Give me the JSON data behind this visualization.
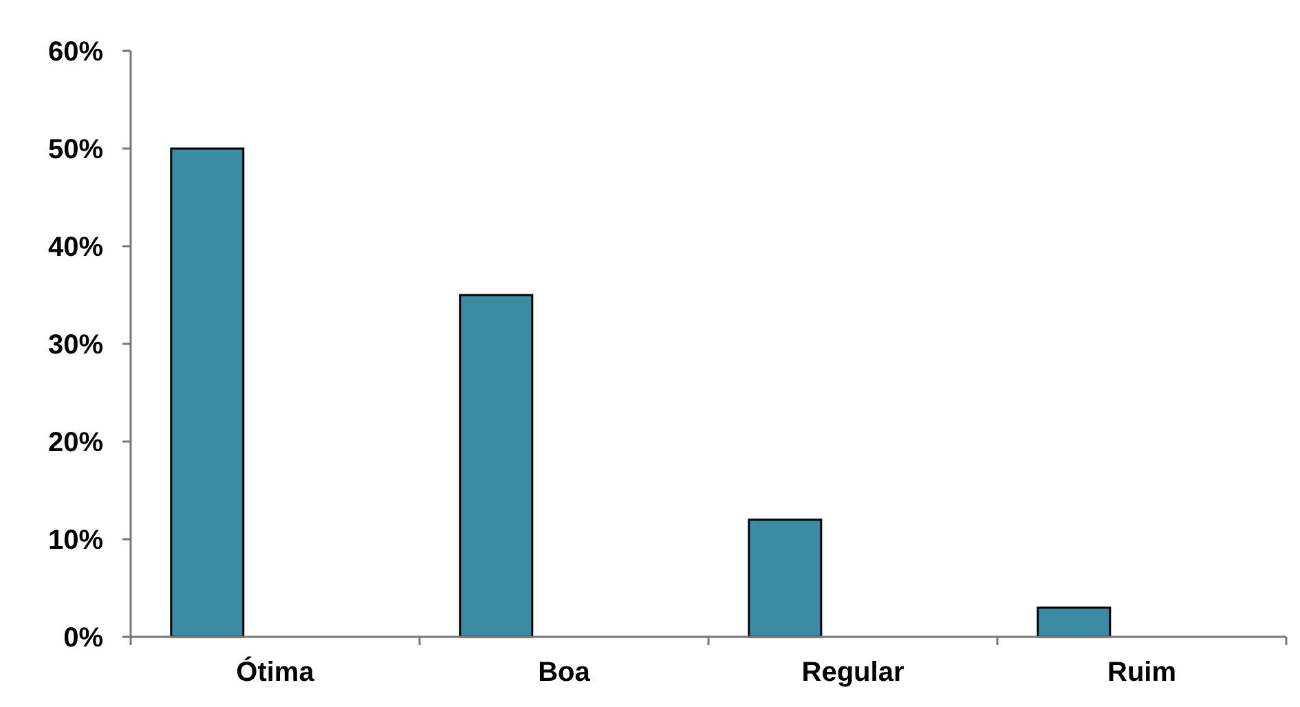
{
  "chart_data": {
    "type": "bar",
    "categories": [
      "Ótima",
      "Boa",
      "Regular",
      "Ruim"
    ],
    "values": [
      50,
      35,
      12,
      3
    ],
    "color": "#3a8ba3",
    "ylim": [
      0,
      60
    ],
    "yticks": [
      {
        "value": 0,
        "label": "0%"
      },
      {
        "value": 10,
        "label": "10%"
      },
      {
        "value": 20,
        "label": "20%"
      },
      {
        "value": 30,
        "label": "30%"
      },
      {
        "value": 40,
        "label": "40%"
      },
      {
        "value": 50,
        "label": "50%"
      },
      {
        "value": 60,
        "label": "60%"
      }
    ],
    "grid": false
  }
}
